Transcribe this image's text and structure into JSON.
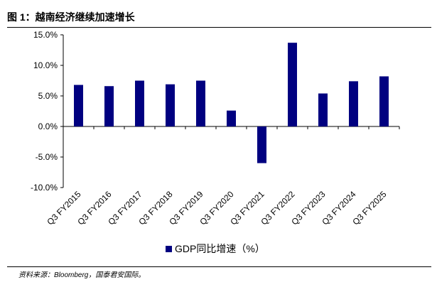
{
  "figure": {
    "title": "图 1：越南经济继续加速增长",
    "source": "资料来源：Bloomberg，国泰君安国际。"
  },
  "chart_data": {
    "type": "bar",
    "title": "",
    "xlabel": "",
    "ylabel": "",
    "categories": [
      "Q3 FY2015",
      "Q3 FY2016",
      "Q3 FY2017",
      "Q3 FY2018",
      "Q3 FY2019",
      "Q3 FY2020",
      "Q3 FY2021",
      "Q3 FY2022",
      "Q3 FY2023",
      "Q3 FY2024",
      "Q3 FY2025"
    ],
    "series": [
      {
        "name": "GDP同比增速（%）",
        "values": [
          6.8,
          6.6,
          7.5,
          6.9,
          7.5,
          2.6,
          -6.0,
          13.7,
          5.4,
          7.4,
          8.2
        ]
      }
    ],
    "ylim": [
      -10,
      15
    ],
    "yticks": [
      15,
      10,
      5,
      0,
      -5,
      -10
    ],
    "ytick_labels": [
      "15.0%",
      "10.0%",
      "5.0%",
      "0.0%",
      "-5.0%",
      "-10.0%"
    ],
    "grid": false,
    "legend_position": "bottom",
    "color": "#000080"
  }
}
